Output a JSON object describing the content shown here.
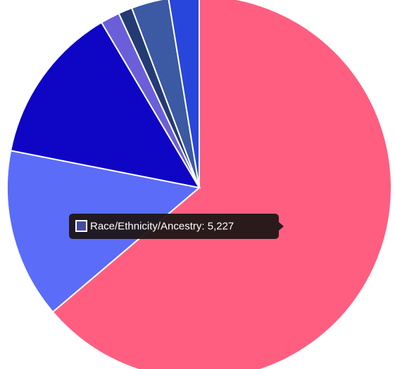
{
  "chart_data": {
    "type": "pie",
    "categories": [
      null,
      "Race/Ethnicity/Ancestry",
      null,
      null,
      null,
      null,
      null
    ],
    "values": [
      23300,
      5227,
      4900,
      590,
      427,
      1150,
      935
    ],
    "colors": [
      "#ff5e80",
      "#5b6cf9",
      "#0e05c5",
      "#6a5fd8",
      "#243a73",
      "#3b5aa3",
      "#2846db"
    ],
    "tooltip": "Race/Ethnicity/Ancestry: 5,227"
  }
}
